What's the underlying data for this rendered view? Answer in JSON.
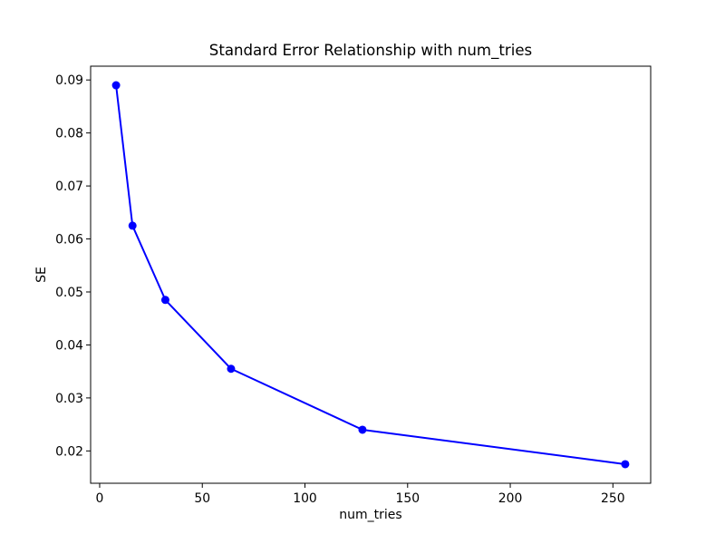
{
  "chart_data": {
    "type": "line",
    "title": "Standard Error Relationship with num_tries",
    "xlabel": "num_tries",
    "ylabel": "SE",
    "x": [
      8,
      16,
      32,
      64,
      128,
      256
    ],
    "series": [
      {
        "name": "SE",
        "values": [
          0.089,
          0.0625,
          0.0485,
          0.0355,
          0.024,
          0.0175
        ]
      }
    ],
    "xticks": [
      0,
      50,
      100,
      150,
      200,
      250
    ],
    "yticks": [
      0.02,
      0.03,
      0.04,
      0.05,
      0.06,
      0.07,
      0.08,
      0.09
    ],
    "xlim": [
      -4.4,
      268.4
    ],
    "ylim": [
      0.0139,
      0.0926
    ],
    "grid": false,
    "legend_position": "none",
    "line_color": "#0000ff",
    "marker": "o",
    "background_color": "#ffffff",
    "spine_color": "#000000"
  }
}
